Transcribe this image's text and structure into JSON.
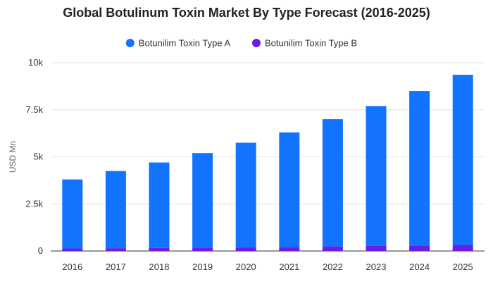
{
  "chart_data": {
    "type": "bar",
    "stacked": true,
    "title": "Global Botulinum Toxin Market By Type Forecast (2016-2025)",
    "xlabel": "",
    "ylabel": "USD Mn",
    "ylim": [
      0,
      10000
    ],
    "yticks": [
      {
        "value": 0,
        "label": "0"
      },
      {
        "value": 2500,
        "label": "2.5k"
      },
      {
        "value": 5000,
        "label": "5k"
      },
      {
        "value": 7500,
        "label": "7.5k"
      },
      {
        "value": 10000,
        "label": "10k"
      }
    ],
    "grid": true,
    "legend_position": "top-center",
    "categories": [
      "2016",
      "2017",
      "2018",
      "2019",
      "2020",
      "2021",
      "2022",
      "2023",
      "2024",
      "2025"
    ],
    "series": [
      {
        "name": "Botunilim Toxin Type B",
        "color": "#6a1de6",
        "values": [
          130,
          145,
          160,
          175,
          195,
          215,
          240,
          265,
          290,
          320
        ]
      },
      {
        "name": "Botunilim Toxin Type A",
        "color": "#1273ff",
        "values": [
          3670,
          4105,
          4540,
          5025,
          5555,
          6085,
          6760,
          7435,
          8210,
          9040
        ]
      }
    ],
    "legend_order": [
      1,
      0
    ]
  }
}
